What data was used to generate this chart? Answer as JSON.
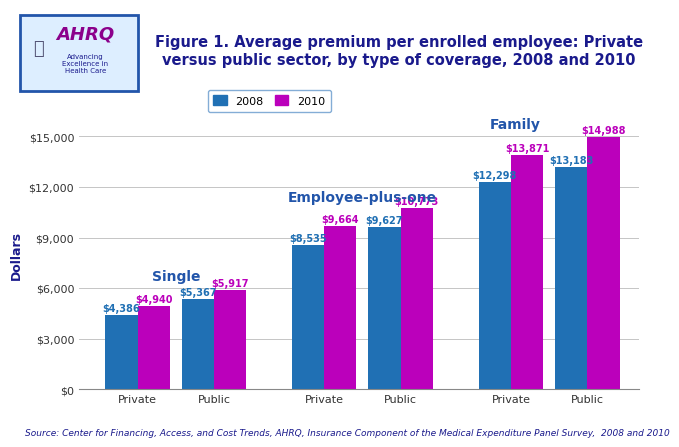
{
  "title": "Figure 1. Average premium per enrolled employee: Private\nversus public sector, by type of coverage, 2008 and 2010",
  "ylabel": "Dollars",
  "source": "Source: Center for Financing, Access, and Cost Trends, AHRQ, Insurance Component of the Medical Expenditure Panel Survey,  2008 and 2010",
  "categories": [
    "Private",
    "Public",
    "Private",
    "Public",
    "Private",
    "Public"
  ],
  "values_2008": [
    4386,
    5367,
    8535,
    9627,
    12298,
    13183
  ],
  "values_2010": [
    4940,
    5917,
    9664,
    10773,
    13871,
    14988
  ],
  "bar_color_2008": "#2070B4",
  "bar_color_2010": "#BB00BB",
  "ylim": [
    0,
    16000
  ],
  "yticks": [
    0,
    3000,
    6000,
    9000,
    12000,
    15000
  ],
  "ytick_labels": [
    "$0",
    "$3,000",
    "$6,000",
    "$9,000",
    "$12,000",
    "$15,000"
  ],
  "legend_2008": "2008",
  "legend_2010": "2010",
  "bar_width": 0.38,
  "group_label_color": "#2255AA",
  "group_label_fontsize": 10,
  "title_color": "#1a1a8c",
  "title_fontsize": 10.5,
  "ylabel_color": "#1a1a8c",
  "value_label_color_2008": "#2070B4",
  "value_label_color_2010": "#BB00BB",
  "value_label_fontsize": 7,
  "background_color": "#ffffff",
  "grid_color": "#bbbbbb",
  "source_fontsize": 6.5,
  "source_color": "#1a1a8c",
  "header_line_color": "#1a1a8c",
  "logo_border_color": "#2255AA",
  "x_positions": [
    0.5,
    1.4,
    2.7,
    3.6,
    4.9,
    5.8
  ]
}
